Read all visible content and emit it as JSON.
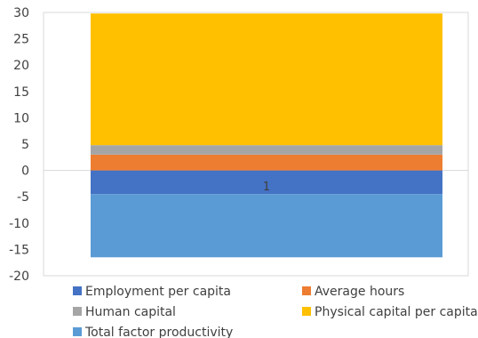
{
  "chart_data": {
    "type": "bar",
    "stacked": true,
    "categories": [
      "1"
    ],
    "ylim": [
      -20,
      30
    ],
    "yticks": [
      30,
      25,
      20,
      15,
      10,
      5,
      0,
      -5,
      -10,
      -15,
      -20
    ],
    "grid": false,
    "legend_position": "bottom",
    "series": [
      {
        "name": "Employment per capita",
        "values": [
          -4.5
        ],
        "color": "#4472C4"
      },
      {
        "name": "Average hours",
        "values": [
          3.0
        ],
        "color": "#ED7D31"
      },
      {
        "name": "Human capital",
        "values": [
          1.8
        ],
        "color": "#A5A5A5"
      },
      {
        "name": "Physical capital per capita",
        "values": [
          25.0
        ],
        "color": "#FFC000"
      },
      {
        "name": "Total factor productivity",
        "values": [
          -12.0
        ],
        "color": "#5B9BD5"
      }
    ]
  }
}
